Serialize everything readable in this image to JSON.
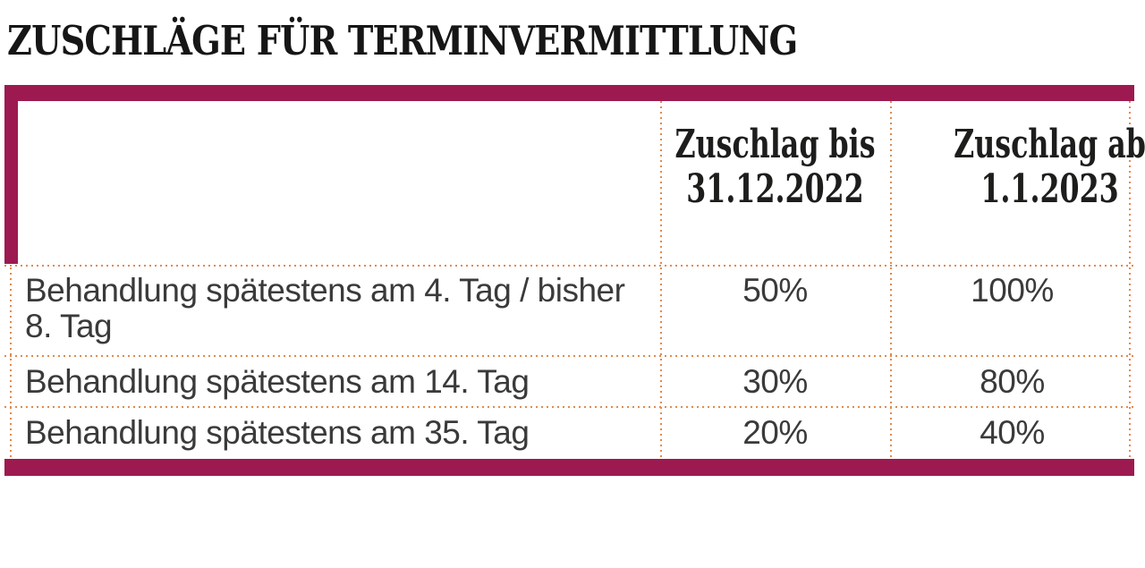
{
  "title": "ZUSCHLÄGE FÜR TERMINVERMITTLUNG",
  "colors": {
    "accent": "#9d1a50",
    "dots": "#e28a4f",
    "text": "#3a3a3a",
    "heading": "#161616"
  },
  "chart_data": {
    "type": "table",
    "title": "ZUSCHLÄGE FÜR TERMINVERMITTLUNG",
    "columns": [
      "",
      "Zuschlag bis 31.12.2022",
      "Zuschlag ab 1.1.2023"
    ],
    "rows": [
      [
        "Behandlung spätestens am 4. Tag / bisher 8. Tag",
        "50%",
        "100%"
      ],
      [
        "Behandlung spätestens am 14. Tag",
        "30%",
        "80%"
      ],
      [
        "Behandlung spätestens am 35. Tag",
        "20%",
        "40%"
      ]
    ]
  }
}
